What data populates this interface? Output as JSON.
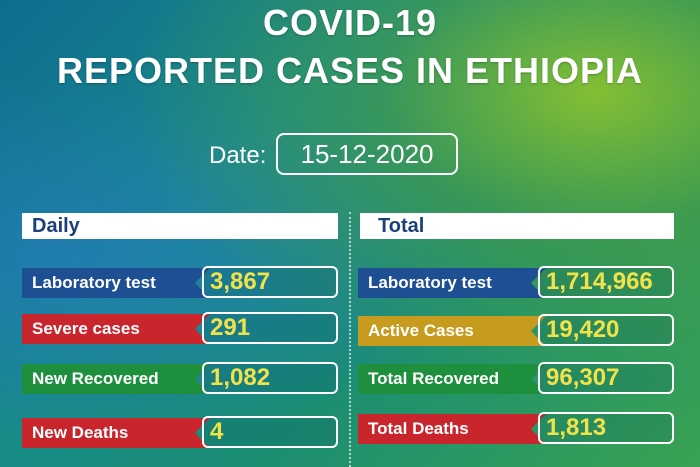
{
  "title_line1": "COVID-19",
  "title_line2": "REPORTED CASES IN ETHIOPIA",
  "date_label": "Date:",
  "date_value": "15-12-2020",
  "daily": {
    "header": "Daily",
    "rows": [
      {
        "label": "Laboratory test",
        "value": "3,867",
        "color": "#1e4f93"
      },
      {
        "label": "Severe cases",
        "value": "291",
        "color": "#c8262c"
      },
      {
        "label": "New Recovered",
        "value": "1,082",
        "color": "#1e8f3c"
      },
      {
        "label": "New Deaths",
        "value": "4",
        "color": "#c8262c"
      }
    ]
  },
  "total": {
    "header": "Total",
    "rows": [
      {
        "label": "Laboratory test",
        "value": "1,714,966",
        "color": "#1e4f93"
      },
      {
        "label": "Active Cases",
        "value": "19,420",
        "color": "#c79b1d"
      },
      {
        "label": "Total Recovered",
        "value": "96,307",
        "color": "#1e8f3c"
      },
      {
        "label": "Total Deaths",
        "value": "1,813",
        "color": "#c8262c"
      }
    ]
  }
}
